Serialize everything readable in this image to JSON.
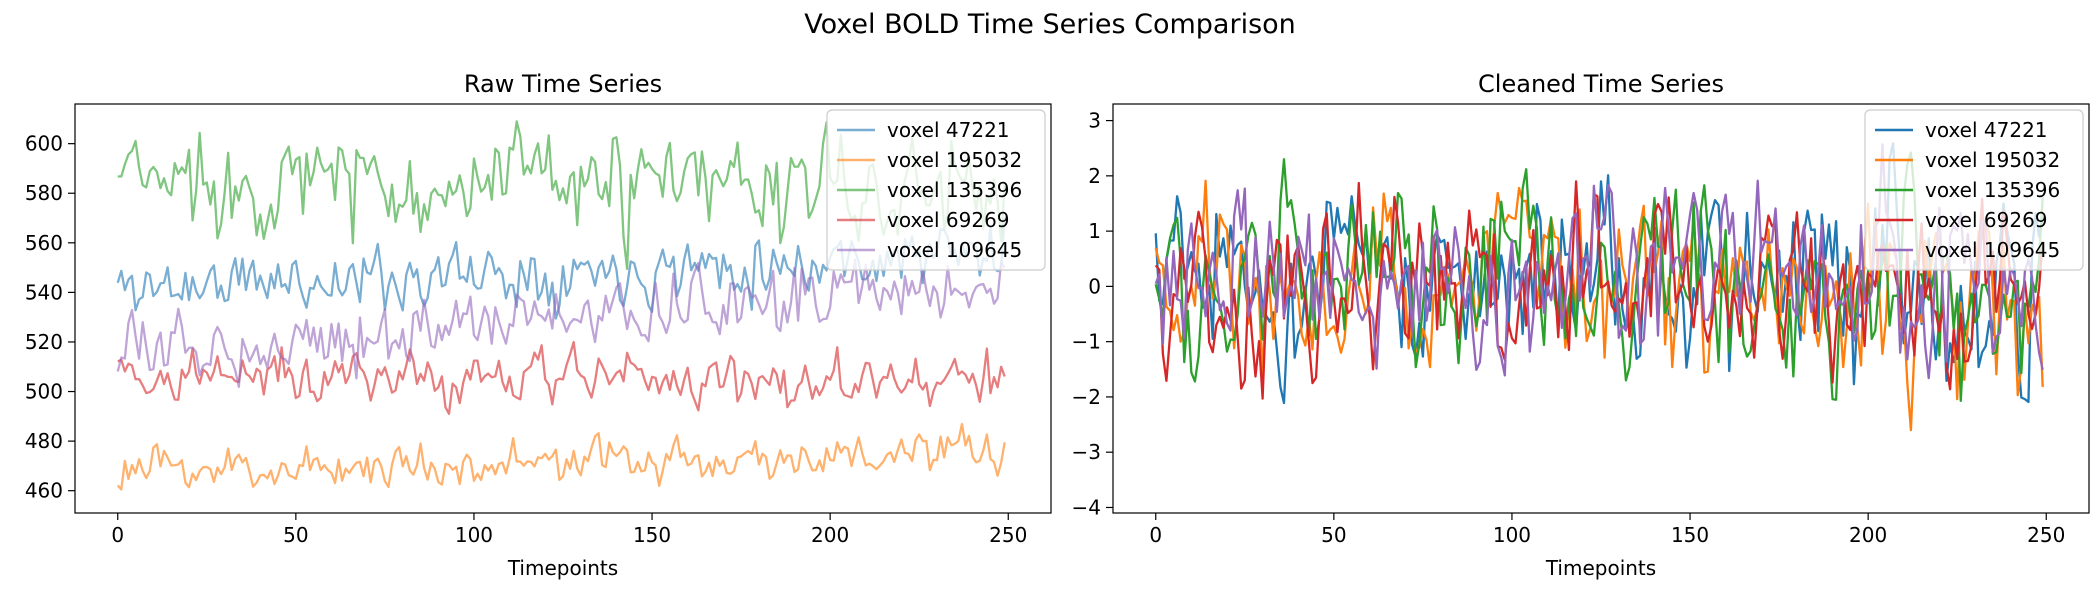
{
  "figure_title": "Voxel BOLD Time Series Comparison",
  "chart_data": [
    {
      "type": "line",
      "title": "Raw Time Series",
      "xlabel": "Timepoints",
      "ylabel": "",
      "xlim": [
        -12,
        262
      ],
      "ylim": [
        451,
        616
      ],
      "xticks": [
        0,
        50,
        100,
        150,
        200,
        250
      ],
      "yticks": [
        460,
        480,
        500,
        520,
        540,
        560,
        580,
        600
      ],
      "alpha": 0.6,
      "legend_position": "top-right",
      "series": [
        {
          "name": "voxel 47221",
          "color": "#1f77b4",
          "seed": 11,
          "base": 542,
          "trend": 14,
          "noise": 6.0,
          "smooth": 0.35
        },
        {
          "name": "voxel 195032",
          "color": "#ff7f0e",
          "seed": 23,
          "base": 468,
          "trend": 7,
          "noise": 4.0,
          "smooth": 0.35
        },
        {
          "name": "voxel 135396",
          "color": "#2ca02c",
          "seed": 37,
          "base": 586,
          "trend": -6,
          "noise": 9.5,
          "smooth": 0.35
        },
        {
          "name": "voxel 69269",
          "color": "#d62728",
          "seed": 41,
          "base": 507,
          "trend": -4,
          "noise": 5.0,
          "smooth": 0.35
        },
        {
          "name": "voxel 109645",
          "color": "#9467bd",
          "seed": 53,
          "base": 515,
          "trend": 30,
          "noise": 6.0,
          "smooth": 0.35
        }
      ]
    },
    {
      "type": "line",
      "title": "Cleaned Time Series",
      "xlabel": "Timepoints",
      "ylabel": "",
      "xlim": [
        -12,
        262
      ],
      "ylim": [
        -4.1,
        3.3
      ],
      "xticks": [
        0,
        50,
        100,
        150,
        200,
        250
      ],
      "yticks": [
        -4,
        -3,
        -2,
        -1,
        0,
        1,
        2,
        3
      ],
      "alpha": 1.0,
      "legend_position": "top-right",
      "series": [
        {
          "name": "voxel 47221",
          "color": "#1f77b4",
          "seed": 61,
          "base": 0,
          "trend": 0,
          "noise": 1.05,
          "smooth": 0.55
        },
        {
          "name": "voxel 195032",
          "color": "#ff7f0e",
          "seed": 67,
          "base": 0,
          "trend": 0,
          "noise": 1.0,
          "smooth": 0.55
        },
        {
          "name": "voxel 135396",
          "color": "#2ca02c",
          "seed": 71,
          "base": 0,
          "trend": 0,
          "noise": 1.0,
          "smooth": 0.55
        },
        {
          "name": "voxel 69269",
          "color": "#d62728",
          "seed": 79,
          "base": 0,
          "trend": 0,
          "noise": 0.95,
          "smooth": 0.55
        },
        {
          "name": "voxel 109645",
          "color": "#9467bd",
          "seed": 83,
          "base": 0,
          "trend": 0,
          "noise": 1.0,
          "smooth": 0.55
        }
      ]
    }
  ],
  "n_timepoints": 250
}
